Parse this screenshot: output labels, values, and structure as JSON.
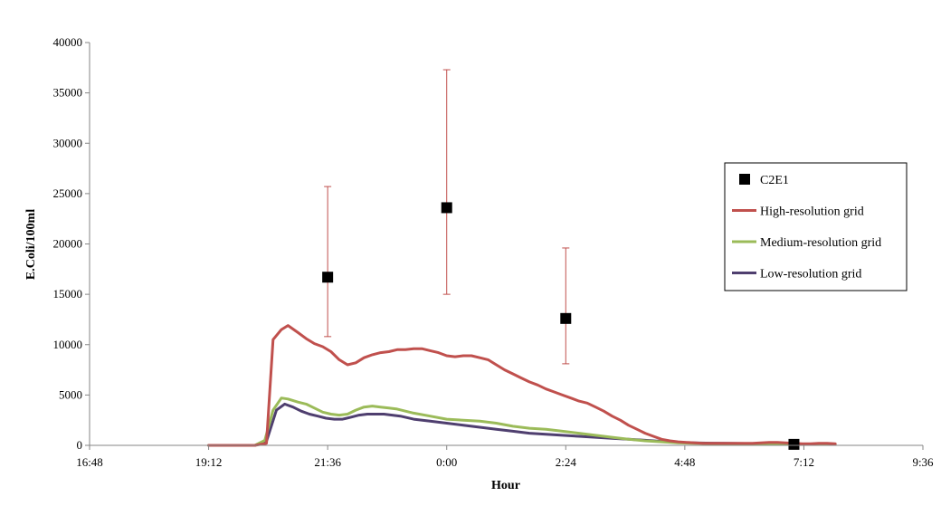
{
  "chart_data": {
    "type": "line",
    "title": "",
    "xlabel": "Hour",
    "ylabel": "E.Coli/100ml",
    "x_unit": "clock time (hh:mm); times past midnight continue after 24:00",
    "xlim": [
      "16:48",
      "33:36"
    ],
    "ylim": [
      0,
      40000
    ],
    "x_ticks": [
      "16:48",
      "19:12",
      "21:36",
      "0:00",
      "2:24",
      "4:48",
      "7:12",
      "9:36"
    ],
    "y_ticks": [
      "0",
      "5000",
      "10000",
      "15000",
      "20000",
      "25000",
      "30000",
      "35000",
      "40000"
    ],
    "grid": false,
    "legend_position": "right",
    "series": [
      {
        "name": "High-resolution grid",
        "color": "#c0504d",
        "x": [
          "19:12",
          "19:40",
          "20:08",
          "20:22",
          "20:30",
          "20:40",
          "20:48",
          "21:00",
          "21:10",
          "21:20",
          "21:30",
          "21:40",
          "21:50",
          "22:00",
          "22:10",
          "22:20",
          "22:30",
          "22:40",
          "22:50",
          "23:00",
          "23:10",
          "23:20",
          "23:30",
          "23:40",
          "23:50",
          "24:00",
          "24:10",
          "24:20",
          "24:30",
          "24:40",
          "24:50",
          "25:00",
          "25:10",
          "25:20",
          "25:30",
          "25:40",
          "25:50",
          "26:00",
          "26:10",
          "26:20",
          "26:30",
          "26:40",
          "26:50",
          "27:00",
          "27:10",
          "27:20",
          "27:30",
          "27:40",
          "27:50",
          "28:00",
          "28:10",
          "28:20",
          "28:30",
          "28:40",
          "28:50",
          "29:00",
          "29:10",
          "29:20",
          "29:30",
          "29:40",
          "29:50",
          "30:00",
          "30:10",
          "30:20",
          "30:30",
          "30:40",
          "30:50",
          "31:00",
          "31:10",
          "31:20",
          "31:30",
          "31:40",
          "31:50"
        ],
        "values": [
          0,
          0,
          0,
          200,
          10500,
          11500,
          11900,
          11200,
          10600,
          10100,
          9800,
          9300,
          8500,
          8000,
          8200,
          8700,
          9000,
          9200,
          9300,
          9500,
          9500,
          9600,
          9600,
          9400,
          9200,
          8900,
          8800,
          8900,
          8900,
          8700,
          8500,
          8000,
          7500,
          7100,
          6700,
          6300,
          6000,
          5600,
          5300,
          5000,
          4700,
          4400,
          4200,
          3800,
          3400,
          2900,
          2500,
          2000,
          1600,
          1200,
          900,
          600,
          450,
          350,
          300,
          250,
          200,
          200,
          200,
          200,
          200,
          200,
          200,
          250,
          300,
          300,
          250,
          200,
          150,
          150,
          200,
          200,
          150
        ]
      },
      {
        "name": "Medium-resolution grid",
        "color": "#9bbb59",
        "x": [
          "19:12",
          "19:40",
          "20:08",
          "20:20",
          "20:30",
          "20:40",
          "20:48",
          "21:00",
          "21:10",
          "21:20",
          "21:30",
          "21:40",
          "21:50",
          "22:00",
          "22:10",
          "22:20",
          "22:30",
          "22:40",
          "22:50",
          "23:00",
          "23:20",
          "23:40",
          "24:00",
          "24:20",
          "24:40",
          "25:00",
          "25:20",
          "25:40",
          "26:00",
          "26:20",
          "26:40",
          "27:00",
          "27:20",
          "27:40",
          "28:00",
          "28:20",
          "28:40",
          "29:00",
          "29:20",
          "29:40",
          "30:00",
          "30:20",
          "30:40",
          "31:00",
          "31:20",
          "31:50"
        ],
        "values": [
          0,
          0,
          0,
          500,
          3500,
          4700,
          4600,
          4300,
          4100,
          3700,
          3300,
          3100,
          3000,
          3100,
          3500,
          3800,
          3900,
          3800,
          3700,
          3600,
          3200,
          2900,
          2600,
          2500,
          2400,
          2200,
          1900,
          1700,
          1600,
          1400,
          1200,
          1000,
          800,
          600,
          450,
          350,
          250,
          200,
          180,
          160,
          140,
          120,
          110,
          100,
          100,
          100
        ]
      },
      {
        "name": "Low-resolution grid",
        "color": "#4f3f6f",
        "x": [
          "19:12",
          "19:40",
          "20:08",
          "20:22",
          "20:34",
          "20:44",
          "20:54",
          "21:04",
          "21:14",
          "21:24",
          "21:34",
          "21:44",
          "21:54",
          "22:04",
          "22:14",
          "22:24",
          "22:34",
          "22:44",
          "22:54",
          "23:04",
          "23:20",
          "23:40",
          "24:00",
          "24:20",
          "24:40",
          "25:00",
          "25:20",
          "25:40",
          "26:00",
          "26:20",
          "26:40",
          "27:00",
          "27:20",
          "27:40",
          "28:00",
          "28:20",
          "28:40",
          "29:00",
          "29:20",
          "29:40",
          "30:00",
          "30:20",
          "30:40",
          "31:00",
          "31:20",
          "31:50"
        ],
        "values": [
          0,
          0,
          0,
          400,
          3500,
          4100,
          3800,
          3400,
          3100,
          2900,
          2700,
          2600,
          2600,
          2800,
          3000,
          3100,
          3100,
          3100,
          3000,
          2900,
          2600,
          2400,
          2200,
          2000,
          1800,
          1600,
          1400,
          1200,
          1100,
          1000,
          900,
          800,
          700,
          600,
          500,
          400,
          300,
          250,
          220,
          200,
          180,
          160,
          140,
          120,
          110,
          100
        ]
      }
    ],
    "observations": {
      "name": "C2E1",
      "color": "#000000",
      "points": [
        {
          "x": "21:36",
          "y": 16700,
          "err_low": 10800,
          "err_high": 25700
        },
        {
          "x": "24:00",
          "y": 23600,
          "err_low": 15000,
          "err_high": 37300
        },
        {
          "x": "26:24",
          "y": 12600,
          "err_low": 8100,
          "err_high": 19600
        },
        {
          "x": "31:00",
          "y": 100,
          "err_low": 100,
          "err_high": 100
        }
      ],
      "error_bar_color": "#c0504d"
    }
  }
}
